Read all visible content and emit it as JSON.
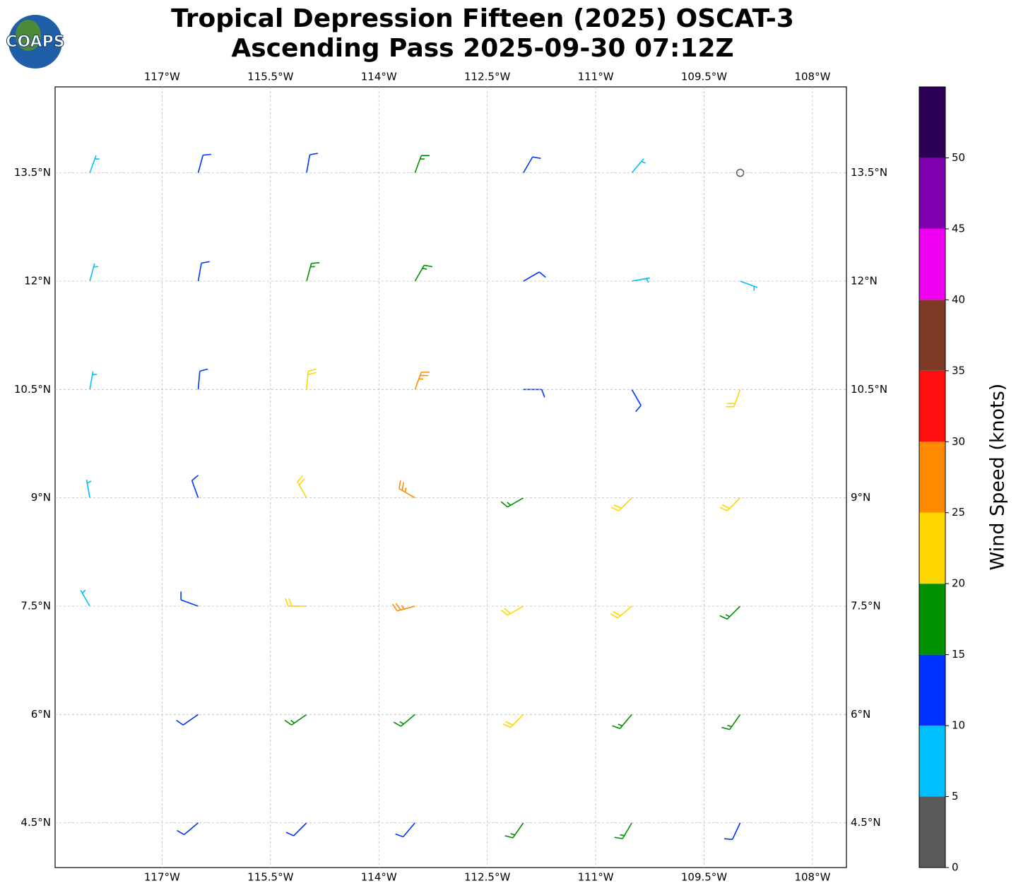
{
  "chart_data": {
    "type": "wind-barb-map",
    "title_lines": [
      "Tropical Depression Fifteen (2025) OSCAT-3",
      "Ascending Pass 2025-09-30 07:12Z"
    ],
    "logo": "COAPS",
    "xlim": [
      -118.48,
      -107.53
    ],
    "ylim": [
      3.88,
      14.69
    ],
    "xticks": [
      {
        "value": -117,
        "label": "117°W"
      },
      {
        "value": -115.5,
        "label": "115.5°W"
      },
      {
        "value": -114,
        "label": "114°W"
      },
      {
        "value": -112.5,
        "label": "112.5°W"
      },
      {
        "value": -111,
        "label": "111°W"
      },
      {
        "value": -109.5,
        "label": "109.5°W"
      },
      {
        "value": -108,
        "label": "108°W"
      }
    ],
    "yticks": [
      {
        "value": 4.5,
        "label": "4.5°N"
      },
      {
        "value": 6,
        "label": "6°N"
      },
      {
        "value": 7.5,
        "label": "7.5°N"
      },
      {
        "value": 9,
        "label": "9°N"
      },
      {
        "value": 10.5,
        "label": "10.5°N"
      },
      {
        "value": 12,
        "label": "12°N"
      },
      {
        "value": 13.5,
        "label": "13.5°N"
      }
    ],
    "grid": true,
    "lons": [
      -118,
      -116.5,
      -115,
      -113.5,
      -112,
      -110.5,
      -109
    ],
    "lats": [
      13.5,
      12,
      10.5,
      9,
      7.5,
      6,
      4.5
    ],
    "speed": [
      [
        8,
        12,
        12,
        17,
        13,
        8,
        3
      ],
      [
        8,
        12,
        17,
        17,
        13,
        8,
        8
      ],
      [
        8,
        12,
        22,
        27,
        13,
        13,
        22
      ],
      [
        8,
        12,
        22,
        27,
        18,
        22,
        22
      ],
      [
        8,
        12,
        22,
        27,
        22,
        22,
        18
      ],
      [
        null,
        13,
        18,
        18,
        22,
        18,
        18
      ],
      [
        null,
        13,
        13,
        13,
        18,
        18,
        13
      ]
    ],
    "direction": [
      [
        20,
        15,
        10,
        20,
        30,
        40,
        60
      ],
      [
        15,
        10,
        15,
        30,
        60,
        80,
        110
      ],
      [
        10,
        5,
        5,
        20,
        90,
        150,
        200
      ],
      [
        350,
        340,
        330,
        300,
        240,
        225,
        225
      ],
      [
        330,
        290,
        270,
        255,
        240,
        230,
        225
      ],
      [
        null,
        235,
        235,
        230,
        225,
        220,
        215
      ],
      [
        null,
        230,
        225,
        220,
        215,
        210,
        205
      ]
    ],
    "colorbar": {
      "label": "Wind Speed (knots)",
      "lim": [
        0,
        55
      ],
      "ticks": [
        0,
        5,
        10,
        15,
        20,
        25,
        30,
        35,
        40,
        45,
        50
      ],
      "bounds": [
        0,
        5,
        10,
        15,
        20,
        25,
        30,
        35,
        40,
        45,
        50,
        55
      ],
      "colors": [
        "#595959",
        "#00bfff",
        "#0033ff",
        "#009100",
        "#ffd700",
        "#ff8c00",
        "#ff0f0f",
        "#7f3a25",
        "#f000f0",
        "#8000b0",
        "#2d0057"
      ]
    }
  }
}
